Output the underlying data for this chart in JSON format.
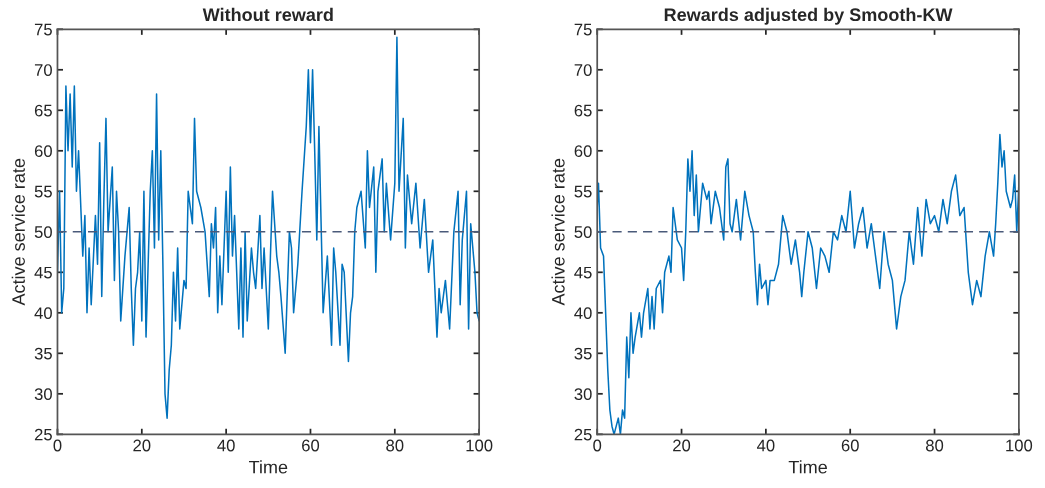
{
  "chart_data": [
    {
      "type": "line",
      "title": "Without reward",
      "xlabel": "Time",
      "ylabel": "Active service rate",
      "xlim": [
        0,
        100
      ],
      "ylim": [
        25,
        75
      ],
      "xticks": [
        0,
        20,
        40,
        60,
        80,
        100
      ],
      "yticks": [
        25,
        30,
        35,
        40,
        45,
        50,
        55,
        60,
        65,
        70,
        75
      ],
      "grid": false,
      "marker": "none",
      "line_style": "solid",
      "ref_lines": [
        {
          "axis": "y",
          "value": 50,
          "color": "#4a5a7a",
          "line_style": "dashed"
        }
      ],
      "series": [
        {
          "color": "#0072bd",
          "x": [
            0,
            0.5,
            1,
            1.5,
            2,
            2.5,
            3,
            3.5,
            4,
            4.5,
            5,
            6,
            6.5,
            7,
            7.5,
            8,
            9,
            9.5,
            10,
            10.5,
            11,
            11.5,
            12,
            13,
            13.5,
            14,
            14.5,
            15,
            16,
            17,
            17.5,
            18,
            18.5,
            19,
            19.5,
            20,
            20.5,
            21,
            22,
            22.5,
            23,
            23.5,
            24,
            24.5,
            25,
            25.5,
            26,
            26.5,
            27,
            27.5,
            28,
            28.5,
            29,
            30,
            30.5,
            31,
            32,
            32.5,
            33,
            34,
            35,
            36,
            36.5,
            37,
            37.5,
            38,
            38.5,
            39,
            40,
            40.5,
            41,
            41.5,
            42,
            43,
            43.5,
            44,
            44.5,
            45,
            46,
            46.5,
            47,
            48,
            48.5,
            49,
            50,
            50.5,
            51,
            52,
            52.5,
            53,
            54,
            55,
            55.5,
            56,
            57,
            58,
            59,
            59.5,
            60,
            60.5,
            61,
            61.5,
            62,
            63,
            64,
            65,
            65.5,
            66,
            67,
            67.5,
            68,
            69,
            69.5,
            70,
            70.5,
            71,
            72,
            73,
            73.5,
            74,
            75,
            75.5,
            76,
            77,
            77.5,
            78,
            79,
            80,
            80.5,
            81,
            82,
            82.5,
            83,
            84,
            85,
            86,
            87,
            88,
            89,
            90,
            90.5,
            91,
            92,
            93,
            94,
            95,
            95.5,
            96,
            97,
            97.5,
            98,
            99,
            99.5,
            100
          ],
          "values": [
            45,
            55,
            40,
            43,
            68,
            60,
            67,
            58,
            68,
            55,
            60,
            47,
            52,
            40,
            48,
            41,
            52,
            46,
            61,
            42,
            54,
            64,
            50,
            58,
            44,
            55,
            50,
            39,
            47,
            53,
            43,
            36,
            43,
            45,
            50,
            39,
            55,
            37,
            55,
            60,
            48,
            67,
            49,
            60,
            46,
            30,
            27,
            33,
            36,
            45,
            39,
            48,
            38,
            44,
            43,
            55,
            51,
            64,
            55,
            53,
            50,
            42,
            51,
            48,
            53,
            40,
            47,
            41,
            55,
            45,
            58,
            47,
            52,
            38,
            48,
            37,
            50,
            39,
            48,
            45,
            43,
            52,
            43,
            48,
            38,
            47,
            55,
            47,
            45,
            42,
            35,
            50,
            48,
            40,
            46,
            55,
            63,
            70,
            61,
            70,
            60,
            49,
            63,
            40,
            47,
            36,
            48,
            45,
            36,
            46,
            45,
            34,
            40,
            42,
            50,
            53,
            55,
            48,
            60,
            53,
            58,
            45,
            55,
            59,
            50,
            56,
            49,
            56,
            74,
            55,
            64,
            48,
            57,
            51,
            56,
            48,
            54,
            45,
            49,
            37,
            43,
            40,
            44,
            38,
            50,
            55,
            41,
            49,
            55,
            38,
            51,
            45,
            40,
            39
          ]
        }
      ]
    },
    {
      "type": "line",
      "title": "Rewards adjusted by Smooth-KW",
      "xlabel": "Time",
      "ylabel": "Active service rate",
      "xlim": [
        0,
        100
      ],
      "ylim": [
        25,
        75
      ],
      "xticks": [
        0,
        20,
        40,
        60,
        80,
        100
      ],
      "yticks": [
        25,
        30,
        35,
        40,
        45,
        50,
        55,
        60,
        65,
        70,
        75
      ],
      "grid": false,
      "marker": "none",
      "line_style": "solid",
      "ref_lines": [
        {
          "axis": "y",
          "value": 50,
          "color": "#4a5a7a",
          "line_style": "dashed"
        }
      ],
      "series": [
        {
          "color": "#0072bd",
          "x": [
            0,
            0.3,
            0.8,
            1.5,
            2,
            2.5,
            3,
            3.5,
            4,
            5,
            5.5,
            6,
            6.5,
            7,
            7.5,
            8,
            8.5,
            9,
            10,
            10.5,
            11,
            12,
            12.5,
            13,
            13.5,
            14,
            15,
            15.5,
            16,
            17,
            17.5,
            18,
            19,
            20,
            20.5,
            21,
            21.5,
            22,
            22.5,
            23,
            23.5,
            24,
            25,
            26,
            26.5,
            27,
            28,
            29,
            30,
            30.5,
            31,
            31.5,
            32,
            33,
            34,
            35,
            36,
            37,
            37.5,
            38,
            38.5,
            39,
            40,
            40.5,
            41,
            42,
            43,
            44,
            45,
            46,
            47,
            48,
            48.5,
            49,
            50,
            51,
            52,
            53,
            54,
            55,
            56,
            57,
            58,
            59,
            60,
            61,
            62,
            63,
            64,
            65,
            66,
            67,
            68,
            69,
            70,
            71,
            72,
            73,
            74,
            75,
            76,
            77,
            78,
            79,
            80,
            81,
            82,
            83,
            84,
            85,
            86,
            87,
            88,
            89,
            90,
            91,
            92,
            93,
            94,
            94.5,
            95,
            95.5,
            96,
            96.5,
            97,
            98,
            98.5,
            99,
            99.5,
            100
          ],
          "values": [
            53,
            56,
            48,
            47,
            40,
            33,
            28,
            26,
            25,
            27,
            25,
            28,
            27,
            37,
            32,
            40,
            35,
            37,
            40,
            37,
            40,
            43,
            38,
            42,
            38,
            43,
            44,
            40,
            45,
            47,
            45,
            53,
            49,
            48,
            44,
            50,
            59,
            55,
            60,
            52,
            57,
            50,
            56,
            54,
            55,
            51,
            55,
            53,
            49,
            58,
            59,
            51,
            50,
            54,
            49,
            55,
            52,
            50,
            45,
            41,
            46,
            43,
            44,
            41,
            44,
            44,
            46,
            52,
            50,
            46,
            49,
            45,
            42,
            45,
            50,
            48,
            43,
            48,
            47,
            45,
            50,
            49,
            52,
            50,
            55,
            48,
            51,
            53,
            48,
            51,
            47,
            43,
            50,
            46,
            44,
            38,
            42,
            44,
            50,
            46,
            53,
            47,
            54,
            51,
            52,
            50,
            54,
            51,
            55,
            57,
            52,
            53,
            45,
            41,
            44,
            42,
            47,
            50,
            47,
            51,
            56,
            62,
            58,
            60,
            55,
            53,
            54,
            57,
            50,
            56
          ]
        }
      ]
    }
  ]
}
